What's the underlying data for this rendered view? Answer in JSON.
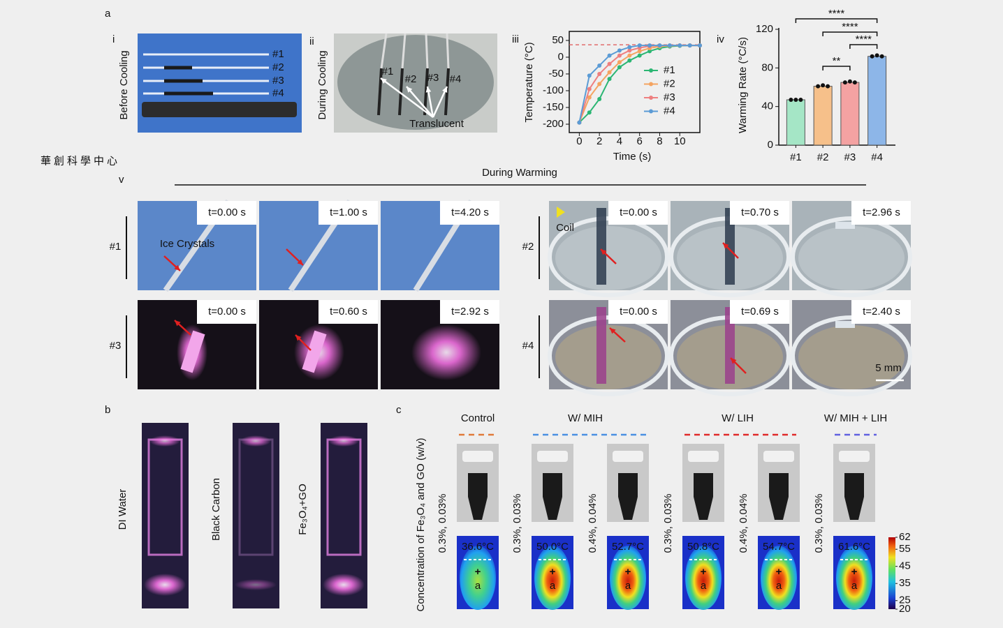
{
  "panel_labels": {
    "a": "a",
    "b": "b",
    "c": "c"
  },
  "watermark": "華創科學中心",
  "a": {
    "i": {
      "label": "i",
      "side_label": "Before Cooling",
      "tags": [
        "#1",
        "#2",
        "#3",
        "#4"
      ]
    },
    "ii": {
      "label": "ii",
      "side_label": "During Cooling",
      "tags": [
        "#1",
        "#2",
        "#3",
        "#4"
      ],
      "annotation": "Translucent"
    },
    "iii": {
      "label": "iii"
    },
    "iv": {
      "label": "iv"
    },
    "v": {
      "label": "v",
      "heading": "During Warming",
      "groups": [
        {
          "label": "#1",
          "times": [
            "t=0.00 s",
            "t=1.00 s",
            "t=4.20 s"
          ],
          "annotation": "Ice Crystals"
        },
        {
          "label": "#2",
          "times": [
            "t=0.00 s",
            "t=0.70 s",
            "t=2.96 s"
          ],
          "annotation": "Coil"
        },
        {
          "label": "#3",
          "times": [
            "t=0.00 s",
            "t=0.60 s",
            "t=2.92 s"
          ]
        },
        {
          "label": "#4",
          "times": [
            "t=0.00 s",
            "t=0.69 s",
            "t=2.40 s"
          ],
          "annotation": "5 mm"
        }
      ]
    }
  },
  "chart_data": [
    {
      "type": "line",
      "x_label": "Time (s)",
      "y_label": "Temperature (°C)",
      "x": [
        0,
        1,
        2,
        3,
        4,
        5,
        6,
        7,
        8,
        9,
        10,
        11,
        12
      ],
      "series": [
        {
          "name": "#1",
          "color": "#2bb673",
          "values": [
            -195,
            -165,
            -125,
            -65,
            -30,
            -10,
            5,
            18,
            27,
            32,
            34,
            35,
            35
          ]
        },
        {
          "name": "#2",
          "color": "#f4a461",
          "values": [
            -195,
            -120,
            -80,
            -45,
            -15,
            5,
            18,
            27,
            32,
            34,
            35,
            35,
            35
          ]
        },
        {
          "name": "#3",
          "color": "#ee7f7f",
          "values": [
            -195,
            -95,
            -50,
            -20,
            5,
            20,
            28,
            33,
            35,
            35,
            35,
            35,
            35
          ]
        },
        {
          "name": "#4",
          "color": "#5b9bd5",
          "values": [
            -195,
            -55,
            -25,
            5,
            20,
            30,
            35,
            35,
            35,
            35,
            35,
            35,
            35
          ]
        }
      ],
      "reference_line": 37,
      "xlim": [
        -1,
        12
      ],
      "ylim": [
        -225,
        77
      ],
      "xticks": [
        0,
        2,
        4,
        6,
        8,
        10
      ],
      "yticks": [
        -200,
        -150,
        -100,
        -50,
        0,
        50
      ]
    },
    {
      "type": "bar",
      "y_label": "Warming Rate (°C/s)",
      "categories": [
        "#1",
        "#2",
        "#3",
        "#4"
      ],
      "values": [
        47,
        61,
        65,
        92
      ],
      "replicates": [
        [
          47,
          47,
          47
        ],
        [
          61,
          62,
          61
        ],
        [
          65,
          66,
          65
        ],
        [
          92,
          93,
          92
        ]
      ],
      "colors": [
        "#a5e6c6",
        "#f6c08a",
        "#f4a2a2",
        "#8db6e8"
      ],
      "significance": [
        "****",
        "****",
        "****",
        "**"
      ],
      "ylim": [
        0,
        120
      ],
      "yticks": [
        0,
        40,
        80,
        120
      ]
    }
  ],
  "b": {
    "labels": [
      "DI Water",
      "Black Carbon",
      "Fe₃O₄+GO"
    ]
  },
  "c": {
    "y_label": "Concentration of Fe₃O₄ and GO (w/v)",
    "groups": [
      {
        "title": "Control",
        "color": "#e07a3a",
        "samples": [
          {
            "conc": "0.3%, 0.03%",
            "temp": "36.6°C"
          }
        ]
      },
      {
        "title": "W/ MIH",
        "color": "#4a90e2",
        "samples": [
          {
            "conc": "0.3%, 0.03%",
            "temp": "50.0°C"
          },
          {
            "conc": "0.4%, 0.04%",
            "temp": "52.7°C"
          }
        ]
      },
      {
        "title": "W/ LIH",
        "color": "#e02a2a",
        "samples": [
          {
            "conc": "0.3%, 0.03%",
            "temp": "50.8°C"
          },
          {
            "conc": "0.4%, 0.04%",
            "temp": "54.7°C"
          }
        ]
      },
      {
        "title": "W/ MIH + LIH",
        "color": "#6060e0",
        "samples": [
          {
            "conc": "0.3%, 0.03%",
            "temp": "61.6°C"
          }
        ]
      }
    ],
    "marker_labels": [
      "+",
      "a"
    ],
    "colorbar": {
      "ylim": [
        20,
        62
      ],
      "yticks": [
        62,
        55,
        45,
        35,
        25,
        20
      ]
    }
  }
}
